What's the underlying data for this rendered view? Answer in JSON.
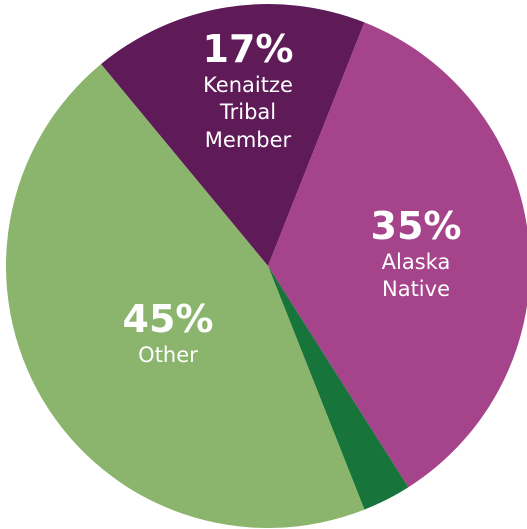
{
  "chart_data": {
    "type": "pie",
    "categories": [
      "Kenaitze Tribal Member",
      "Alaska Native",
      null,
      "Other"
    ],
    "values": [
      17,
      35,
      3,
      45
    ],
    "value_labels": [
      "17%",
      "35%",
      null,
      "45%"
    ],
    "colors": [
      "#5f1a58",
      "#a5438b",
      "#17743b",
      "#8bb46c"
    ]
  }
}
